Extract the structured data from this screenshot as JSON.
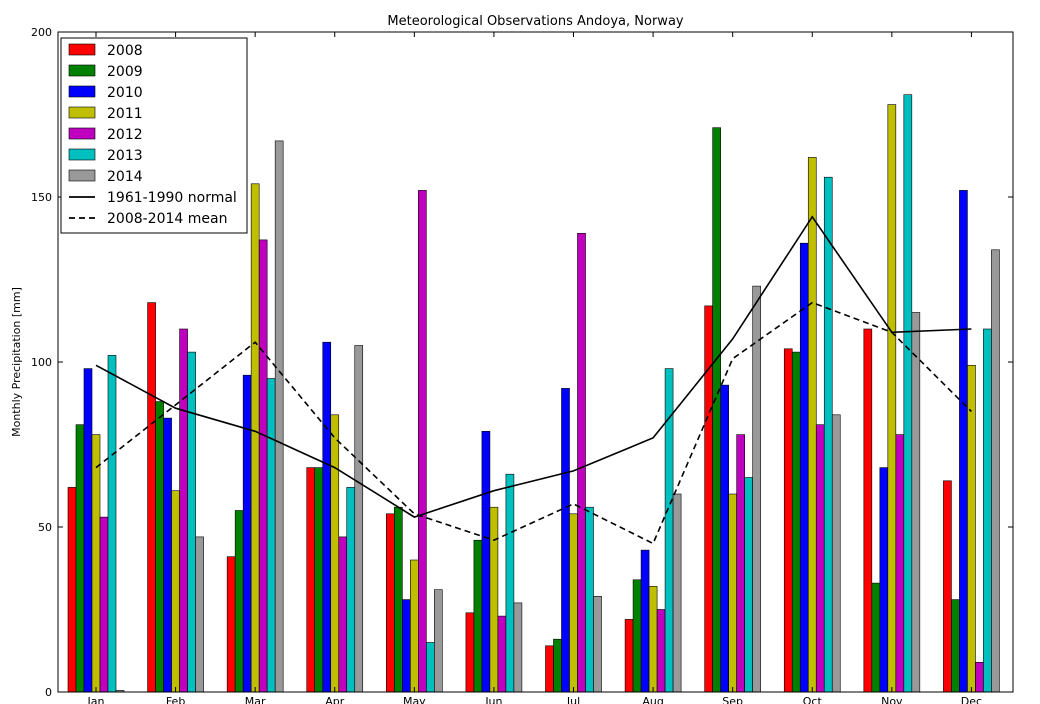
{
  "chart_data": {
    "type": "bar",
    "title": "Meteorological Observations Andoya, Norway",
    "xlabel": "",
    "ylabel": "Monthly Precipitation [mm]",
    "ylim": [
      0,
      200
    ],
    "yticks": [
      0,
      50,
      100,
      150,
      200
    ],
    "categories": [
      "Jan",
      "Feb",
      "Mar",
      "Apr",
      "May",
      "Jun",
      "Jul",
      "Aug",
      "Sep",
      "Oct",
      "Nov",
      "Dec"
    ],
    "grid": false,
    "legend_position": "top-left",
    "series": [
      {
        "name": "2008",
        "color": "#ff0000",
        "values": [
          62,
          118,
          41,
          68,
          54,
          24,
          14,
          22,
          117,
          104,
          110,
          64
        ]
      },
      {
        "name": "2009",
        "color": "#008000",
        "values": [
          81,
          88,
          55,
          68,
          56,
          46,
          16,
          34,
          171,
          103,
          33,
          28
        ]
      },
      {
        "name": "2010",
        "color": "#0000ff",
        "values": [
          98,
          83,
          96,
          106,
          28,
          79,
          92,
          43,
          93,
          136,
          68,
          152
        ]
      },
      {
        "name": "2011",
        "color": "#bfbf00",
        "values": [
          78,
          61,
          154,
          84,
          40,
          56,
          54,
          32,
          60,
          162,
          178,
          99
        ]
      },
      {
        "name": "2012",
        "color": "#bf00bf",
        "values": [
          53,
          110,
          137,
          47,
          152,
          23,
          139,
          25,
          78,
          81,
          78,
          9
        ]
      },
      {
        "name": "2013",
        "color": "#00bfbf",
        "values": [
          102,
          103,
          95,
          62,
          15,
          66,
          56,
          98,
          65,
          156,
          181,
          110
        ]
      },
      {
        "name": "2014",
        "color": "#999999",
        "values": [
          0.5,
          47,
          167,
          105,
          31,
          27,
          29,
          60,
          123,
          84,
          115,
          134
        ]
      }
    ],
    "lines": [
      {
        "name": "1961-1990 normal",
        "style": "solid",
        "color": "#000000",
        "values": [
          99,
          86,
          79,
          68,
          53,
          61,
          67,
          77,
          107,
          144,
          109,
          110
        ]
      },
      {
        "name": "2008-2014 mean",
        "style": "dashed",
        "color": "#000000",
        "values": [
          68,
          87,
          106,
          77,
          54,
          46,
          57,
          45,
          101,
          118,
          109,
          85
        ]
      }
    ]
  }
}
